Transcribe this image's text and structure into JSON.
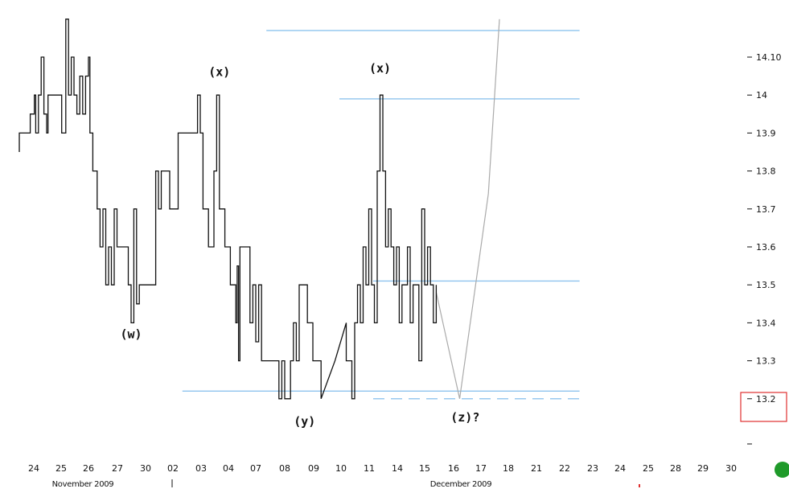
{
  "chart_data": {
    "type": "line",
    "title": "",
    "xlabel": "",
    "ylabel": "",
    "ylim": [
      13.05,
      14.2
    ],
    "y_ticks": [
      "14.10",
      "14",
      "13.9",
      "13.8",
      "13.7",
      "13.6",
      "13.5",
      "13.4",
      "13.3",
      "13.2"
    ],
    "x_ticks": [
      "24",
      "25",
      "26",
      "27",
      "30",
      "02",
      "03",
      "04",
      "07",
      "08",
      "09",
      "10",
      "11",
      "14",
      "15",
      "16",
      "17",
      "18",
      "21",
      "22",
      "23",
      "24",
      "25",
      "28",
      "29",
      "30"
    ],
    "months": [
      "November 2009",
      "December 2009"
    ],
    "highlighted_level": "13.2",
    "series": [
      {
        "values": [
          [
            0,
            13.85
          ],
          [
            0,
            13.9
          ],
          [
            0.4,
            13.9
          ],
          [
            0.4,
            13.95
          ],
          [
            0.55,
            13.95
          ],
          [
            0.55,
            14
          ],
          [
            0.6,
            14
          ],
          [
            0.6,
            13.9
          ],
          [
            0.7,
            13.9
          ],
          [
            0.7,
            14
          ],
          [
            0.8,
            14
          ],
          [
            0.8,
            14.1
          ],
          [
            0.9,
            14.1
          ],
          [
            0.9,
            13.95
          ],
          [
            1.0,
            13.95
          ],
          [
            1.0,
            13.9
          ],
          [
            1.05,
            13.9
          ],
          [
            1.05,
            14
          ],
          [
            1.55,
            14
          ],
          [
            1.55,
            13.9
          ],
          [
            1.7,
            13.9
          ],
          [
            1.7,
            14.2
          ],
          [
            1.8,
            14.2
          ],
          [
            1.8,
            14
          ],
          [
            1.9,
            14
          ],
          [
            1.9,
            14.1
          ],
          [
            2.0,
            14.1
          ],
          [
            2.0,
            14
          ],
          [
            2.1,
            14
          ],
          [
            2.1,
            13.95
          ],
          [
            2.2,
            13.95
          ],
          [
            2.2,
            14.05
          ],
          [
            2.3,
            14.05
          ],
          [
            2.3,
            13.95
          ],
          [
            2.4,
            13.95
          ],
          [
            2.4,
            14.05
          ],
          [
            2.5,
            14.05
          ],
          [
            2.5,
            14.1
          ],
          [
            2.55,
            14.1
          ],
          [
            2.55,
            13.9
          ],
          [
            2.65,
            13.9
          ],
          [
            2.65,
            13.8
          ],
          [
            2.8,
            13.8
          ],
          [
            2.8,
            13.7
          ],
          [
            2.9,
            13.7
          ],
          [
            2.9,
            13.6
          ],
          [
            3.0,
            13.6
          ],
          [
            3.0,
            13.7
          ],
          [
            3.1,
            13.7
          ],
          [
            3.1,
            13.5
          ],
          [
            3.2,
            13.5
          ],
          [
            3.2,
            13.6
          ],
          [
            3.3,
            13.6
          ],
          [
            3.3,
            13.5
          ],
          [
            3.4,
            13.5
          ],
          [
            3.4,
            13.7
          ],
          [
            3.5,
            13.7
          ],
          [
            3.5,
            13.6
          ],
          [
            3.9,
            13.6
          ],
          [
            3.9,
            13.5
          ],
          [
            4.0,
            13.5
          ],
          [
            4.0,
            13.4
          ],
          [
            4.1,
            13.4
          ],
          [
            4.1,
            13.7
          ],
          [
            4.2,
            13.7
          ],
          [
            4.2,
            13.45
          ],
          [
            4.3,
            13.45
          ],
          [
            4.3,
            13.5
          ],
          [
            4.9,
            13.5
          ],
          [
            4.9,
            13.8
          ],
          [
            5.0,
            13.8
          ],
          [
            5.0,
            13.7
          ],
          [
            5.1,
            13.7
          ],
          [
            5.1,
            13.8
          ],
          [
            5.4,
            13.8
          ],
          [
            5.4,
            13.7
          ],
          [
            5.7,
            13.7
          ],
          [
            5.7,
            13.9
          ],
          [
            6.1,
            13.9
          ],
          [
            6.1,
            13.9
          ],
          [
            6.4,
            13.9
          ],
          [
            6.4,
            14
          ],
          [
            6.5,
            14
          ],
          [
            6.5,
            13.9
          ],
          [
            6.6,
            13.9
          ],
          [
            6.6,
            13.7
          ],
          [
            6.8,
            13.7
          ],
          [
            6.8,
            13.6
          ],
          [
            7.0,
            13.6
          ],
          [
            7.0,
            13.8
          ],
          [
            7.1,
            13.8
          ],
          [
            7.1,
            14
          ],
          [
            7.2,
            14
          ],
          [
            7.2,
            13.7
          ],
          [
            7.4,
            13.7
          ],
          [
            7.4,
            13.6
          ],
          [
            7.6,
            13.6
          ],
          [
            7.6,
            13.5
          ],
          [
            7.8,
            13.5
          ],
          [
            7.8,
            13.4
          ],
          [
            7.85,
            13.4
          ],
          [
            7.85,
            13.55
          ],
          [
            7.9,
            13.55
          ],
          [
            7.9,
            13.3
          ],
          [
            7.95,
            13.3
          ],
          [
            7.95,
            13.6
          ],
          [
            8.3,
            13.6
          ],
          [
            8.3,
            13.4
          ],
          [
            8.4,
            13.4
          ],
          [
            8.4,
            13.5
          ],
          [
            8.5,
            13.5
          ],
          [
            8.5,
            13.35
          ],
          [
            8.6,
            13.35
          ],
          [
            8.6,
            13.5
          ],
          [
            8.7,
            13.5
          ],
          [
            8.7,
            13.3
          ],
          [
            9.3,
            13.3
          ],
          [
            9.3,
            13.2
          ],
          [
            9.4,
            13.2
          ],
          [
            9.4,
            13.3
          ],
          [
            9.5,
            13.3
          ],
          [
            9.5,
            13.2
          ],
          [
            9.7,
            13.2
          ],
          [
            9.7,
            13.3
          ],
          [
            9.8,
            13.3
          ],
          [
            9.8,
            13.4
          ],
          [
            9.9,
            13.4
          ],
          [
            9.9,
            13.3
          ],
          [
            10.0,
            13.3
          ],
          [
            10.0,
            13.5
          ],
          [
            10.3,
            13.5
          ],
          [
            10.3,
            13.4
          ],
          [
            10.5,
            13.4
          ],
          [
            10.5,
            13.3
          ],
          [
            10.8,
            13.3
          ],
          [
            10.8,
            13.2
          ],
          [
            11.3,
            13.3
          ],
          [
            11.7,
            13.4
          ],
          [
            11.7,
            13.3
          ],
          [
            11.9,
            13.3
          ],
          [
            11.9,
            13.2
          ],
          [
            12.0,
            13.2
          ],
          [
            12.0,
            13.4
          ],
          [
            12.1,
            13.4
          ],
          [
            12.1,
            13.5
          ],
          [
            12.2,
            13.5
          ],
          [
            12.2,
            13.4
          ],
          [
            12.3,
            13.4
          ],
          [
            12.3,
            13.6
          ],
          [
            12.4,
            13.6
          ],
          [
            12.4,
            13.5
          ],
          [
            12.5,
            13.5
          ],
          [
            12.5,
            13.7
          ],
          [
            12.6,
            13.7
          ],
          [
            12.6,
            13.5
          ],
          [
            12.7,
            13.5
          ],
          [
            12.7,
            13.4
          ],
          [
            12.8,
            13.4
          ],
          [
            12.8,
            13.8
          ],
          [
            12.9,
            13.8
          ],
          [
            12.9,
            14
          ],
          [
            13.0,
            14
          ],
          [
            13.0,
            13.8
          ],
          [
            13.1,
            13.8
          ],
          [
            13.1,
            13.6
          ],
          [
            13.2,
            13.6
          ],
          [
            13.2,
            13.7
          ],
          [
            13.3,
            13.7
          ],
          [
            13.3,
            13.6
          ],
          [
            13.4,
            13.6
          ],
          [
            13.4,
            13.5
          ],
          [
            13.5,
            13.5
          ],
          [
            13.5,
            13.6
          ],
          [
            13.6,
            13.6
          ],
          [
            13.6,
            13.4
          ],
          [
            13.7,
            13.4
          ],
          [
            13.7,
            13.5
          ],
          [
            13.9,
            13.5
          ],
          [
            13.9,
            13.6
          ],
          [
            14.0,
            13.6
          ],
          [
            14.0,
            13.4
          ],
          [
            14.1,
            13.4
          ],
          [
            14.1,
            13.5
          ],
          [
            14.3,
            13.5
          ],
          [
            14.3,
            13.3
          ],
          [
            14.4,
            13.3
          ],
          [
            14.4,
            13.7
          ],
          [
            14.5,
            13.7
          ],
          [
            14.5,
            13.5
          ],
          [
            14.6,
            13.5
          ],
          [
            14.6,
            13.6
          ],
          [
            14.7,
            13.6
          ],
          [
            14.7,
            13.5
          ],
          [
            14.8,
            13.5
          ],
          [
            14.8,
            13.4
          ],
          [
            14.9,
            13.4
          ],
          [
            14.9,
            13.5
          ]
        ]
      },
      {
        "values": [
          [
            14.9,
            13.48
          ],
          [
            15.75,
            13.2
          ],
          [
            16.8,
            13.74
          ],
          [
            17.2,
            14.2
          ]
        ]
      }
    ],
    "labels": [
      {
        "text": "(w)",
        "x": 4.0,
        "y": 13.36
      },
      {
        "text": "(x)",
        "x": 7.2,
        "y": 14.05
      },
      {
        "text": "(y)",
        "x": 10.2,
        "y": 13.13
      },
      {
        "text": "(x)",
        "x": 12.9,
        "y": 14.06
      },
      {
        "text": "(z)?",
        "x": 15.95,
        "y": 13.14
      }
    ],
    "levels": [
      {
        "y": 14.17,
        "from": 9.2,
        "to": 20.4,
        "style": "solid"
      },
      {
        "y": 13.99,
        "from": 11.8,
        "to": 20.4,
        "style": "solid"
      },
      {
        "y": 13.51,
        "from": 13.0,
        "to": 20.4,
        "style": "solid"
      },
      {
        "y": 13.22,
        "from": 6.2,
        "to": 20.4,
        "style": "solid"
      },
      {
        "y": 13.2,
        "from": 13.0,
        "to": 20.4,
        "style": "dashed"
      }
    ]
  }
}
